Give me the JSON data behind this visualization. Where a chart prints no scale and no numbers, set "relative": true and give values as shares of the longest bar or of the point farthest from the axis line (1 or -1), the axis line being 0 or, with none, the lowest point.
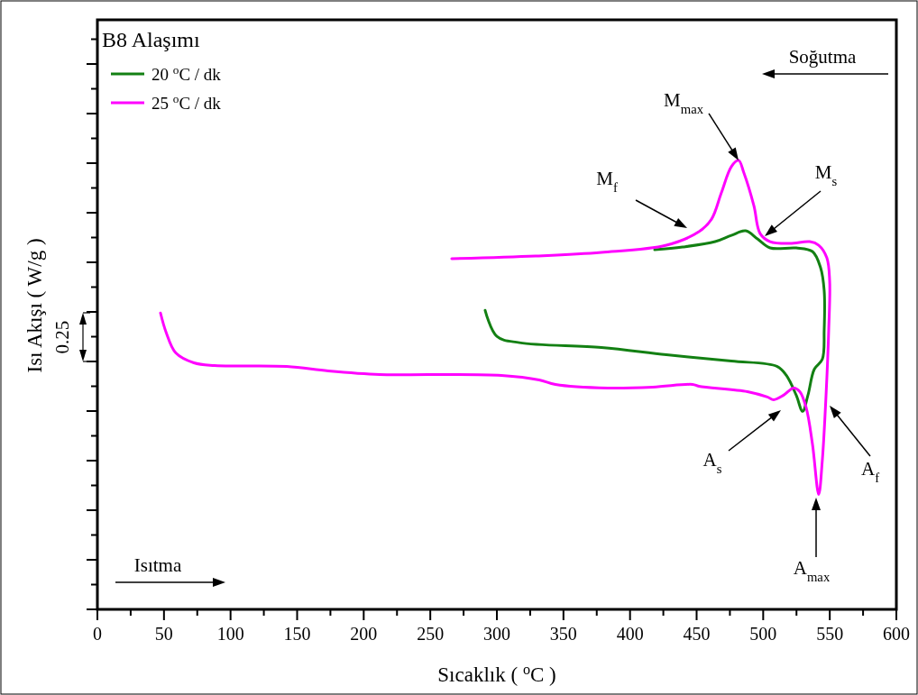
{
  "chart_data": {
    "type": "line",
    "title": "B8 Alaşımı",
    "xlabel": "Sıcaklık ( $^{o}$C )",
    "ylabel": "Isı Akışı ( W/g )",
    "relative": true,
    "xlim": [
      0,
      600
    ],
    "xticks": [
      0,
      50,
      100,
      150,
      200,
      250,
      300,
      350,
      400,
      450,
      500,
      550,
      600
    ],
    "grid": false,
    "legend": "top left",
    "marker": "none",
    "line_style": "solid",
    "series": [
      {
        "name": "20 $^{o}$C / dk",
        "color": "#138013",
        "x": [
          291.2,
          300.0,
          316.9,
          378.5,
          427.3,
          476.1,
          510.6,
          517.4,
          524.8,
          529.6,
          533.6,
          538.4,
          544.4,
          545.8,
          545.8,
          543.1,
          537.0,
          524.8,
          505.2,
          495.7,
          486.9,
          476.1,
          463.9,
          439.5,
          418.5
        ],
        "values": [
          0.666,
          0.608,
          0.594,
          0.583,
          0.567,
          0.553,
          0.541,
          0.521,
          0.477,
          0.441,
          0.477,
          0.535,
          0.557,
          0.622,
          0.71,
          0.761,
          0.797,
          0.805,
          0.805,
          0.825,
          0.843,
          0.833,
          0.819,
          0.807,
          0.801
        ]
      },
      {
        "name": "25 $^{o}$C / dk",
        "color": "#ff00ff",
        "x": [
          47.4,
          51.5,
          58.9,
          72.5,
          88.0,
          142.2,
          173.4,
          212.0,
          251.2,
          303.4,
          331.8,
          344.0,
          383.3,
          417.1,
          447.0,
          451.7,
          488.2,
          503.1,
          507.9,
          515.3,
          522.8,
          527.5,
          532.3,
          537.0,
          541.7,
          544.4,
          547.2,
          549.2,
          549.9,
          547.8,
          541.7,
          535.0,
          520.1,
          505.2,
          497.7,
          493.0,
          485.5,
          481.5,
          476.1,
          468.6,
          461.2,
          451.7,
          427.3,
          378.5,
          329.1,
          266.1
        ],
        "values": [
          0.66,
          0.618,
          0.571,
          0.549,
          0.543,
          0.541,
          0.531,
          0.523,
          0.523,
          0.521,
          0.511,
          0.501,
          0.493,
          0.495,
          0.501,
          0.497,
          0.485,
          0.473,
          0.467,
          0.477,
          0.493,
          0.485,
          0.449,
          0.368,
          0.256,
          0.332,
          0.477,
          0.622,
          0.732,
          0.783,
          0.811,
          0.819,
          0.815,
          0.819,
          0.837,
          0.899,
          0.972,
          1,
          0.986,
          0.928,
          0.869,
          0.841,
          0.811,
          0.795,
          0.787,
          0.781
        ]
      }
    ],
    "annotations": [
      {
        "text": "M$_{max}$",
        "x": 481.5,
        "y": 1.0
      },
      "M$_{f}$",
      "M$_{s}$",
      "A$_{s}$",
      "A$_{f}$",
      "A$_{max}$",
      "Soğutma",
      "Isıtma",
      "0.25"
    ]
  }
}
